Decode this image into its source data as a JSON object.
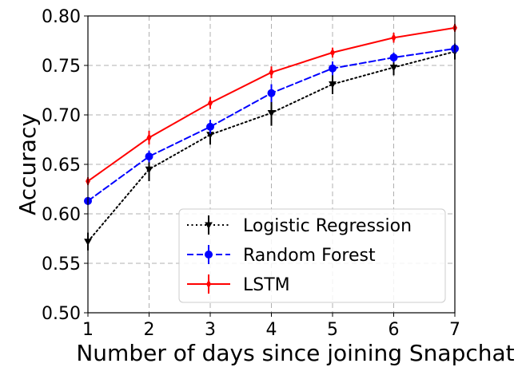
{
  "chart_data": {
    "type": "line",
    "title": "",
    "xlabel": "Number of days since joining Snapchat",
    "ylabel": "Accuracy",
    "x": [
      1,
      2,
      3,
      4,
      5,
      6,
      7
    ],
    "x_ticks": [
      "1",
      "2",
      "3",
      "4",
      "5",
      "6",
      "7"
    ],
    "xlim": [
      1,
      7
    ],
    "ylim": [
      0.5,
      0.8
    ],
    "y_ticks": [
      0.5,
      0.55,
      0.6,
      0.65,
      0.7,
      0.75,
      0.8
    ],
    "y_tick_labels": [
      "0.50",
      "0.55",
      "0.60",
      "0.65",
      "0.70",
      "0.75",
      "0.80"
    ],
    "grid": true,
    "legend_position": "bottom-right",
    "series": [
      {
        "name": "Logistic Regression",
        "color": "#000000",
        "line_style": "dotted",
        "marker": "tri-down",
        "values": [
          0.572,
          0.645,
          0.68,
          0.702,
          0.731,
          0.748,
          0.764
        ],
        "errors": [
          0.009,
          0.012,
          0.01,
          0.013,
          0.01,
          0.008,
          0.008
        ]
      },
      {
        "name": "Random Forest",
        "color": "#0000ff",
        "line_style": "dashed",
        "marker": "circle",
        "values": [
          0.613,
          0.658,
          0.688,
          0.722,
          0.747,
          0.758,
          0.767
        ],
        "errors": [
          0.004,
          0.006,
          0.007,
          0.009,
          0.007,
          0.005,
          0.005
        ]
      },
      {
        "name": "LSTM",
        "color": "#ff0000",
        "line_style": "solid",
        "marker": "thin-diamond",
        "values": [
          0.633,
          0.677,
          0.712,
          0.743,
          0.763,
          0.778,
          0.788
        ],
        "errors": [
          0.004,
          0.007,
          0.006,
          0.006,
          0.005,
          0.005,
          0.004
        ]
      }
    ]
  }
}
